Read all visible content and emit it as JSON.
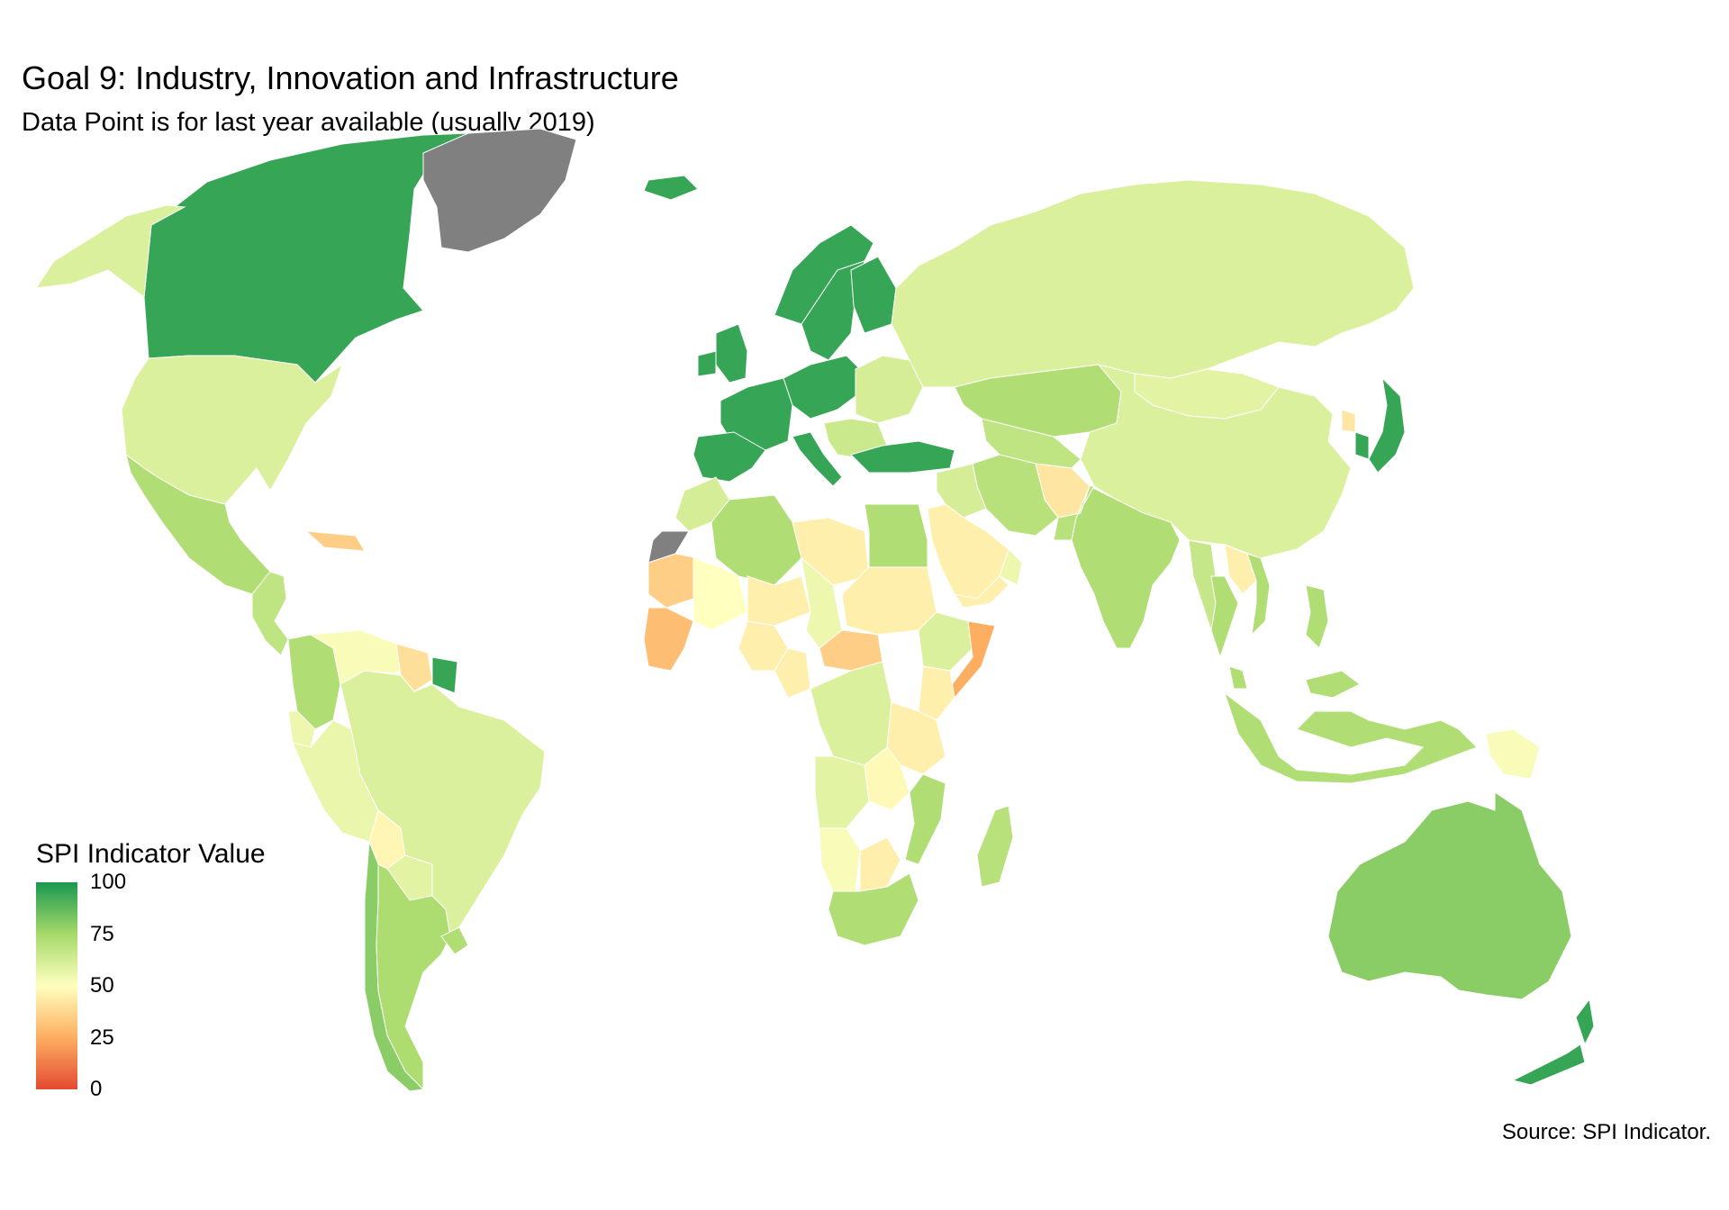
{
  "title": "Goal 9: Industry, Innovation and Infrastructure",
  "subtitle": "Data Point is for last year available (usually 2019)",
  "source": "Source: SPI Indicator.",
  "chart_data": {
    "type": "choropleth",
    "title": "Goal 9: Industry, Innovation and Infrastructure",
    "subtitle": "Data Point is for last year available (usually 2019)",
    "legend": {
      "title": "SPI Indicator Value",
      "min": 0,
      "max": 100,
      "ticks": [
        100,
        75,
        50,
        25,
        0
      ],
      "tick_labels": [
        "100",
        "75",
        "50",
        "25",
        "0"
      ],
      "colors": {
        "0": "#e34a33",
        "25": "#fdae61",
        "50": "#ffffbf",
        "75": "#a6d96a",
        "100": "#1a9850"
      },
      "placement": "bottom-left"
    },
    "no_data_colors": [
      "#808080",
      "#c0c0c0"
    ],
    "regions": [
      {
        "name": "Canada",
        "value": 95
      },
      {
        "name": "Greenland",
        "value": null
      },
      {
        "name": "United States",
        "value": 60
      },
      {
        "name": "Alaska",
        "value": 60
      },
      {
        "name": "Mexico",
        "value": 72
      },
      {
        "name": "Central America",
        "value": 68
      },
      {
        "name": "Caribbean",
        "value": 35
      },
      {
        "name": "Colombia",
        "value": 72
      },
      {
        "name": "Venezuela",
        "value": 52
      },
      {
        "name": "Guyana",
        "value": 40
      },
      {
        "name": "French Guiana",
        "value": 95
      },
      {
        "name": "Ecuador",
        "value": 55
      },
      {
        "name": "Peru",
        "value": 56
      },
      {
        "name": "Brazil",
        "value": 60
      },
      {
        "name": "Bolivia",
        "value": 47
      },
      {
        "name": "Paraguay",
        "value": 58
      },
      {
        "name": "Chile",
        "value": 80
      },
      {
        "name": "Argentina",
        "value": 73
      },
      {
        "name": "Uruguay",
        "value": 72
      },
      {
        "name": "Iceland",
        "value": 95
      },
      {
        "name": "Norway",
        "value": 95
      },
      {
        "name": "Sweden",
        "value": 95
      },
      {
        "name": "Finland",
        "value": 95
      },
      {
        "name": "United Kingdom",
        "value": 95
      },
      {
        "name": "Ireland",
        "value": 95
      },
      {
        "name": "Western Europe",
        "value": 95
      },
      {
        "name": "Iberia",
        "value": 95
      },
      {
        "name": "Italy",
        "value": 95
      },
      {
        "name": "Central Europe",
        "value": 95
      },
      {
        "name": "Eastern Europe",
        "value": 62
      },
      {
        "name": "Balkans",
        "value": 65
      },
      {
        "name": "Turkey",
        "value": 95
      },
      {
        "name": "Russia",
        "value": 60
      },
      {
        "name": "Kazakhstan",
        "value": 72
      },
      {
        "name": "Central Asia",
        "value": 68
      },
      {
        "name": "Afghanistan",
        "value": 42
      },
      {
        "name": "Iran",
        "value": 70
      },
      {
        "name": "Iraq",
        "value": 62
      },
      {
        "name": "Saudi Arabia",
        "value": 45
      },
      {
        "name": "Yemen",
        "value": 45
      },
      {
        "name": "Oman",
        "value": 55
      },
      {
        "name": "Mongolia",
        "value": 58
      },
      {
        "name": "China",
        "value": 60
      },
      {
        "name": "North Korea",
        "value": 42
      },
      {
        "name": "South Korea",
        "value": 95
      },
      {
        "name": "Japan",
        "value": 95
      },
      {
        "name": "India",
        "value": 72
      },
      {
        "name": "Pakistan",
        "value": 70
      },
      {
        "name": "Myanmar",
        "value": 66
      },
      {
        "name": "Laos",
        "value": 45
      },
      {
        "name": "Thailand",
        "value": 72
      },
      {
        "name": "Vietnam",
        "value": 72
      },
      {
        "name": "Philippines",
        "value": 72
      },
      {
        "name": "Malaysia",
        "value": 72
      },
      {
        "name": "Indonesia",
        "value": 72
      },
      {
        "name": "Papua New Guinea",
        "value": 52
      },
      {
        "name": "Australia",
        "value": 80
      },
      {
        "name": "New Zealand",
        "value": 95
      },
      {
        "name": "Morocco",
        "value": 62
      },
      {
        "name": "Western Sahara",
        "value": null
      },
      {
        "name": "Algeria",
        "value": 72
      },
      {
        "name": "Libya",
        "value": 45
      },
      {
        "name": "Egypt",
        "value": 72
      },
      {
        "name": "Mauritania",
        "value": 35
      },
      {
        "name": "Mali",
        "value": 50
      },
      {
        "name": "Niger",
        "value": 45
      },
      {
        "name": "Chad",
        "value": 55
      },
      {
        "name": "Sudan",
        "value": 45
      },
      {
        "name": "Ethiopia",
        "value": 60
      },
      {
        "name": "Somalia",
        "value": 25
      },
      {
        "name": "West Africa Coast",
        "value": 30
      },
      {
        "name": "Nigeria",
        "value": 45
      },
      {
        "name": "Central African Republic",
        "value": 35
      },
      {
        "name": "Cameroon",
        "value": 45
      },
      {
        "name": "DR Congo",
        "value": 60
      },
      {
        "name": "Kenya",
        "value": 45
      },
      {
        "name": "Tanzania",
        "value": 45
      },
      {
        "name": "Angola",
        "value": 58
      },
      {
        "name": "Zambia",
        "value": 48
      },
      {
        "name": "Mozambique",
        "value": 72
      },
      {
        "name": "Namibia",
        "value": 52
      },
      {
        "name": "Botswana",
        "value": 45
      },
      {
        "name": "South Africa",
        "value": 72
      },
      {
        "name": "Madagascar",
        "value": 70
      }
    ]
  }
}
